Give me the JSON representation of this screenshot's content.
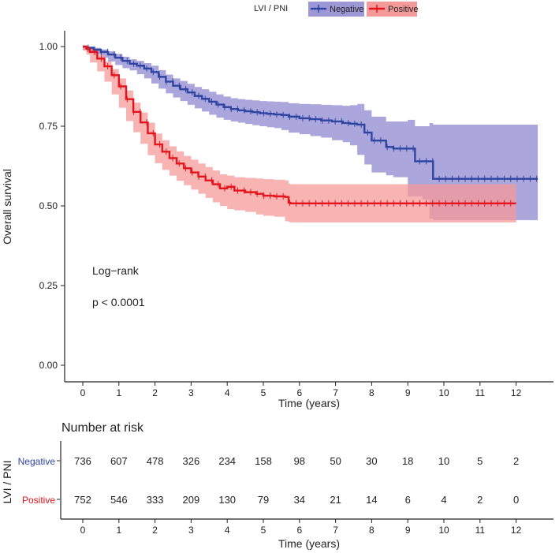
{
  "chart_data": {
    "type": "line",
    "subtype": "kaplan-meier",
    "legend": {
      "title": "LVI / PNI",
      "entries": [
        "Negative",
        "Positive"
      ],
      "placement": "top"
    },
    "ylabel": "Overall survival",
    "xlabel": "Time (years)",
    "ylim": [
      0,
      1
    ],
    "xlim": [
      0,
      12.6
    ],
    "y_ticks": [
      "0.00",
      "0.25",
      "0.50",
      "0.75",
      "1.00"
    ],
    "x_ticks": [
      "0",
      "1",
      "2",
      "3",
      "4",
      "5",
      "6",
      "7",
      "8",
      "9",
      "10",
      "11",
      "12"
    ],
    "annotations": [
      "Log−rank",
      "p < 0.0001"
    ],
    "colors": {
      "negative_line": "#2e45a1",
      "negative_band": "#9c98d6",
      "positive_line": "#e3141c",
      "positive_band": "#f59a9a",
      "axis": "#222222"
    },
    "series": [
      {
        "name": "Negative",
        "x": [
          0,
          0.1,
          0.3,
          0.5,
          0.7,
          0.9,
          1.1,
          1.3,
          1.5,
          1.7,
          1.9,
          2.1,
          2.3,
          2.5,
          2.7,
          2.9,
          3.1,
          3.3,
          3.5,
          3.7,
          3.9,
          4.1,
          4.3,
          4.5,
          4.7,
          4.9,
          5.1,
          5.3,
          5.5,
          5.7,
          6.0,
          6.3,
          6.6,
          6.9,
          7.2,
          7.4,
          7.6,
          7.8,
          8.0,
          8.4,
          8.6,
          9.0,
          9.2,
          9.4,
          9.6,
          9.7,
          10.0,
          11.0,
          12.6
        ],
        "y": [
          1.0,
          0.996,
          0.99,
          0.983,
          0.975,
          0.965,
          0.955,
          0.946,
          0.94,
          0.931,
          0.92,
          0.905,
          0.89,
          0.877,
          0.866,
          0.856,
          0.845,
          0.836,
          0.827,
          0.818,
          0.81,
          0.804,
          0.8,
          0.797,
          0.794,
          0.791,
          0.789,
          0.787,
          0.785,
          0.78,
          0.775,
          0.772,
          0.768,
          0.765,
          0.76,
          0.758,
          0.755,
          0.73,
          0.705,
          0.685,
          0.68,
          0.68,
          0.64,
          0.64,
          0.64,
          0.585,
          0.585,
          0.585,
          0.585
        ],
        "ci_lower": [
          1.0,
          0.99,
          0.983,
          0.975,
          0.965,
          0.953,
          0.942,
          0.932,
          0.925,
          0.913,
          0.9,
          0.884,
          0.868,
          0.853,
          0.84,
          0.829,
          0.817,
          0.806,
          0.796,
          0.786,
          0.777,
          0.77,
          0.765,
          0.761,
          0.757,
          0.753,
          0.75,
          0.747,
          0.744,
          0.738,
          0.73,
          0.725,
          0.719,
          0.714,
          0.706,
          0.7,
          0.69,
          0.66,
          0.63,
          0.605,
          0.596,
          0.59,
          0.53,
          0.53,
          0.52,
          0.46,
          0.455,
          0.455,
          0.455
        ],
        "ci_upper": [
          1.0,
          1.0,
          0.996,
          0.991,
          0.985,
          0.977,
          0.968,
          0.96,
          0.955,
          0.948,
          0.94,
          0.926,
          0.912,
          0.9,
          0.892,
          0.883,
          0.873,
          0.866,
          0.858,
          0.85,
          0.843,
          0.838,
          0.835,
          0.833,
          0.831,
          0.829,
          0.828,
          0.827,
          0.826,
          0.822,
          0.82,
          0.819,
          0.817,
          0.816,
          0.814,
          0.816,
          0.82,
          0.8,
          0.78,
          0.765,
          0.765,
          0.77,
          0.75,
          0.75,
          0.76,
          0.755,
          0.755,
          0.755,
          0.755
        ]
      },
      {
        "name": "Positive",
        "x": [
          0,
          0.1,
          0.2,
          0.4,
          0.6,
          0.8,
          1.0,
          1.2,
          1.4,
          1.6,
          1.8,
          2.0,
          2.2,
          2.4,
          2.6,
          2.8,
          3.0,
          3.2,
          3.4,
          3.6,
          3.8,
          4.0,
          4.2,
          4.5,
          4.8,
          5.0,
          5.3,
          5.6,
          5.7,
          5.75,
          6.0,
          7.0,
          8.0,
          9.0,
          10.0,
          11.0,
          12.0
        ],
        "y": [
          1.0,
          0.993,
          0.983,
          0.962,
          0.938,
          0.91,
          0.875,
          0.835,
          0.795,
          0.762,
          0.728,
          0.693,
          0.67,
          0.65,
          0.633,
          0.618,
          0.605,
          0.592,
          0.58,
          0.568,
          0.555,
          0.56,
          0.548,
          0.543,
          0.538,
          0.532,
          0.53,
          0.528,
          0.51,
          0.508,
          0.508,
          0.508,
          0.508,
          0.508,
          0.508,
          0.508,
          0.508
        ],
        "ci_lower": [
          1.0,
          0.987,
          0.975,
          0.95,
          0.922,
          0.89,
          0.85,
          0.808,
          0.766,
          0.731,
          0.695,
          0.659,
          0.634,
          0.613,
          0.595,
          0.579,
          0.565,
          0.551,
          0.538,
          0.525,
          0.511,
          0.5,
          0.49,
          0.486,
          0.481,
          0.473,
          0.469,
          0.466,
          0.452,
          0.45,
          0.448,
          0.448,
          0.448,
          0.448,
          0.448,
          0.448,
          0.448
        ],
        "ci_upper": [
          1.0,
          0.999,
          0.992,
          0.974,
          0.953,
          0.929,
          0.9,
          0.862,
          0.824,
          0.793,
          0.761,
          0.727,
          0.706,
          0.687,
          0.671,
          0.657,
          0.645,
          0.633,
          0.622,
          0.611,
          0.599,
          0.595,
          0.59,
          0.588,
          0.586,
          0.584,
          0.582,
          0.58,
          0.57,
          0.568,
          0.568,
          0.568,
          0.568,
          0.568,
          0.568,
          0.568,
          0.568
        ]
      }
    ],
    "risk_table": {
      "title": "Number at risk",
      "ylabel": "LVI / PNI",
      "xlabel": "Time (years)",
      "times": [
        "0",
        "1",
        "2",
        "3",
        "4",
        "5",
        "6",
        "7",
        "8",
        "9",
        "10",
        "11",
        "12"
      ],
      "rows": [
        {
          "group": "Negative",
          "counts": [
            "736",
            "607",
            "478",
            "326",
            "234",
            "158",
            "98",
            "50",
            "30",
            "18",
            "10",
            "5",
            "2"
          ]
        },
        {
          "group": "Positive",
          "counts": [
            "752",
            "546",
            "333",
            "209",
            "130",
            "79",
            "34",
            "21",
            "14",
            "6",
            "4",
            "2",
            "0"
          ]
        }
      ]
    }
  }
}
